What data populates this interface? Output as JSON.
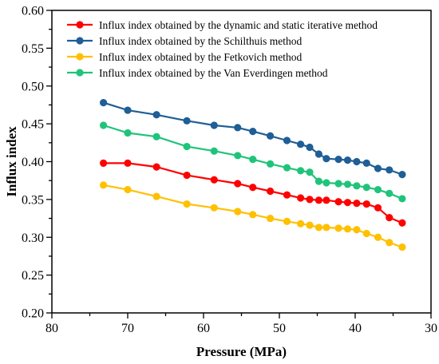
{
  "chart_data": {
    "type": "line",
    "title": "",
    "xlabel": "Pressure (MPa)",
    "ylabel": "Influx index",
    "xlim": [
      80,
      30
    ],
    "ylim": [
      0.2,
      0.6
    ],
    "x_reversed": true,
    "x_ticks": [
      80,
      70,
      60,
      50,
      40,
      30
    ],
    "y_ticks": [
      0.2,
      0.25,
      0.3,
      0.35,
      0.4,
      0.45,
      0.5,
      0.55,
      0.6
    ],
    "x_tick_labels": [
      "80",
      "70",
      "60",
      "50",
      "40",
      "30"
    ],
    "y_tick_labels": [
      "0.20",
      "0.25",
      "0.30",
      "0.35",
      "0.40",
      "0.45",
      "0.50",
      "0.55",
      "0.60"
    ],
    "grid": false,
    "legend_position": "top-left",
    "series": [
      {
        "name": "Influx index obtained by the dynamic and static iterative method",
        "color": "#ff0000",
        "x": [
          73.2,
          70.0,
          66.2,
          62.2,
          58.6,
          55.5,
          53.5,
          51.2,
          49.0,
          47.2,
          46.0,
          44.8,
          43.8,
          42.2,
          41.0,
          39.8,
          38.5,
          37.0,
          35.5,
          33.8
        ],
        "y": [
          0.398,
          0.398,
          0.393,
          0.382,
          0.376,
          0.371,
          0.366,
          0.361,
          0.356,
          0.352,
          0.35,
          0.349,
          0.349,
          0.347,
          0.346,
          0.345,
          0.344,
          0.339,
          0.326,
          0.319
        ]
      },
      {
        "name": "Influx index obtained by the Schilthuis method",
        "color": "#1f5e96",
        "x": [
          73.2,
          70.0,
          66.2,
          62.2,
          58.6,
          55.5,
          53.5,
          51.2,
          49.0,
          47.2,
          46.0,
          44.8,
          43.8,
          42.2,
          41.0,
          39.8,
          38.5,
          37.0,
          35.5,
          33.8
        ],
        "y": [
          0.478,
          0.468,
          0.462,
          0.454,
          0.448,
          0.445,
          0.44,
          0.434,
          0.428,
          0.423,
          0.419,
          0.41,
          0.404,
          0.403,
          0.402,
          0.4,
          0.398,
          0.391,
          0.389,
          0.383
        ]
      },
      {
        "name": "Influx index obtained by the Fetkovich method",
        "color": "#ffc000",
        "x": [
          73.2,
          70.0,
          66.2,
          62.2,
          58.6,
          55.5,
          53.5,
          51.2,
          49.0,
          47.2,
          46.0,
          44.8,
          43.8,
          42.2,
          41.0,
          39.8,
          38.5,
          37.0,
          35.5,
          33.8
        ],
        "y": [
          0.369,
          0.363,
          0.354,
          0.344,
          0.339,
          0.334,
          0.33,
          0.325,
          0.321,
          0.318,
          0.316,
          0.313,
          0.313,
          0.312,
          0.311,
          0.31,
          0.305,
          0.3,
          0.293,
          0.287
        ]
      },
      {
        "name": "Influx index obtained by the Van Everdingen method",
        "color": "#1fc47a",
        "x": [
          73.2,
          70.0,
          66.2,
          62.2,
          58.6,
          55.5,
          53.5,
          51.2,
          49.0,
          47.2,
          46.0,
          44.8,
          43.8,
          42.2,
          41.0,
          39.8,
          38.5,
          37.0,
          35.5,
          33.8
        ],
        "y": [
          0.448,
          0.438,
          0.433,
          0.42,
          0.414,
          0.408,
          0.403,
          0.397,
          0.392,
          0.388,
          0.386,
          0.374,
          0.372,
          0.371,
          0.37,
          0.368,
          0.366,
          0.363,
          0.358,
          0.351
        ]
      }
    ]
  }
}
